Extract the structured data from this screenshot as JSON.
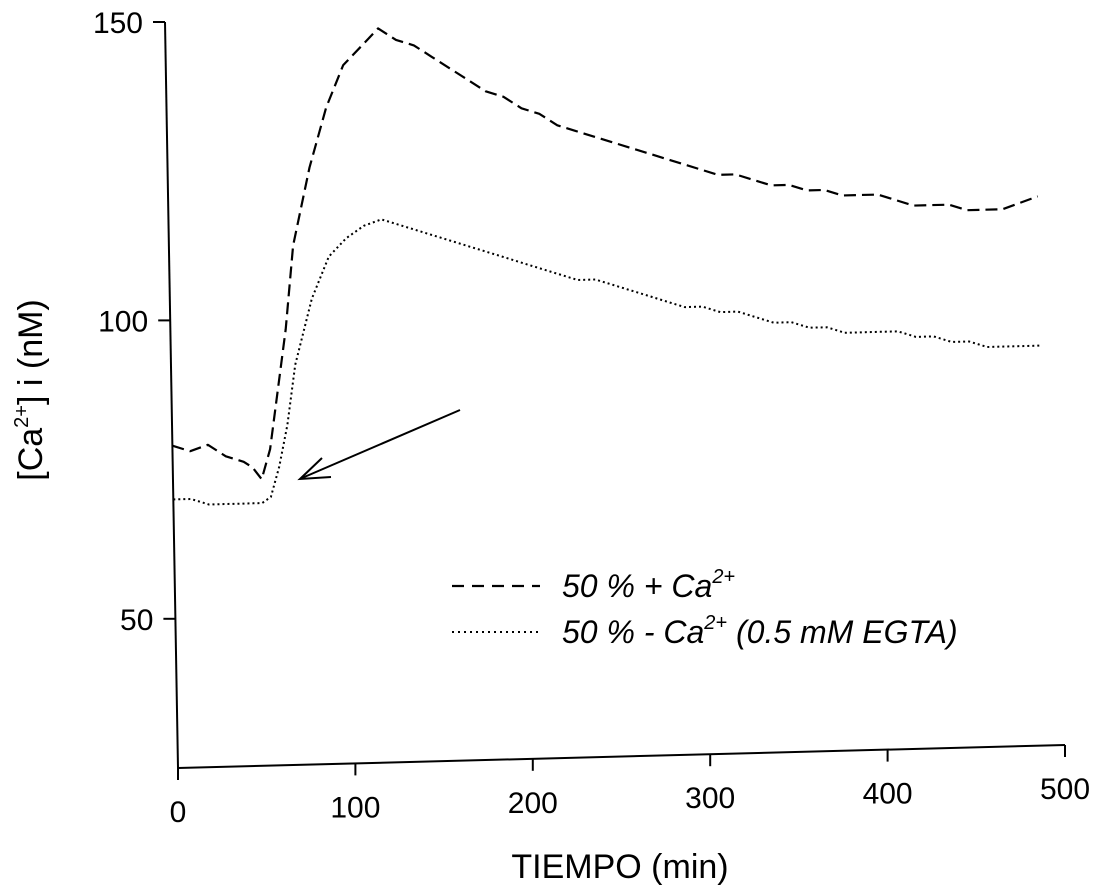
{
  "chart_data": {
    "type": "line",
    "xlabel": "TIEMPO (min)",
    "ylabel": "[Ca2+] i (nM)",
    "ylabel_parts": {
      "pre": "[Ca",
      "sup": "2+",
      "post": "] i (nM)"
    },
    "xlim": [
      0,
      500
    ],
    "ylim": [
      25,
      150
    ],
    "x_ticks": [
      0,
      100,
      200,
      300,
      400,
      500
    ],
    "y_ticks": [
      50,
      100,
      150
    ],
    "grid": false,
    "legend_position": "lower-right",
    "annotation": {
      "type": "arrow",
      "points_to": [
        70,
        74
      ]
    },
    "series": [
      {
        "name": "50 % + Ca2+",
        "legend": {
          "pre": "50 % + Ca",
          "sup": "2+",
          "post": ""
        },
        "style": "dashed",
        "x": [
          0,
          10,
          20,
          30,
          40,
          45,
          50,
          55,
          60,
          65,
          70,
          80,
          90,
          100,
          110,
          120,
          130,
          140,
          150,
          160,
          170,
          180,
          190,
          200,
          210,
          220,
          230,
          240,
          250,
          260,
          270,
          280,
          290,
          300,
          310,
          320,
          330,
          340,
          350,
          360,
          370,
          380,
          390,
          400,
          410,
          420,
          430,
          440,
          450,
          460,
          470,
          480,
          490
        ],
        "y": [
          79,
          78,
          79,
          77,
          76,
          75,
          73,
          78,
          88,
          98,
          112,
          125,
          135,
          142,
          145,
          148,
          146,
          145,
          143,
          141,
          139,
          137,
          136,
          134,
          133,
          131,
          130,
          129,
          128,
          127,
          126,
          125,
          124,
          123,
          122,
          122,
          121,
          120,
          120,
          119,
          119,
          118,
          118,
          118,
          117,
          116,
          116,
          116,
          115,
          115,
          115,
          116,
          117
        ]
      },
      {
        "name": "50 % - Ca2+ (0.5 mM EGTA)",
        "legend": {
          "pre": "50 % - Ca",
          "sup": "2+",
          "post": " (0.5 mM EGTA)"
        },
        "style": "dotted",
        "x": [
          0,
          10,
          20,
          30,
          40,
          45,
          50,
          55,
          60,
          65,
          70,
          80,
          90,
          100,
          110,
          120,
          130,
          140,
          150,
          160,
          170,
          180,
          190,
          200,
          210,
          220,
          230,
          240,
          250,
          260,
          270,
          280,
          290,
          300,
          310,
          320,
          330,
          340,
          350,
          360,
          370,
          380,
          390,
          400,
          410,
          420,
          430,
          440,
          450,
          460,
          470,
          480,
          490
        ],
        "y": [
          70,
          70,
          69,
          69,
          69,
          69,
          69,
          70,
          75,
          82,
          92,
          103,
          110,
          113,
          115,
          116,
          115,
          114,
          113,
          112,
          111,
          110,
          109,
          108,
          107,
          106,
          105,
          105,
          104,
          103,
          102,
          101,
          100,
          100,
          99,
          99,
          98,
          97,
          97,
          96,
          96,
          95,
          95,
          95,
          95,
          94,
          94,
          93,
          93,
          92,
          92,
          92,
          92
        ]
      }
    ]
  }
}
